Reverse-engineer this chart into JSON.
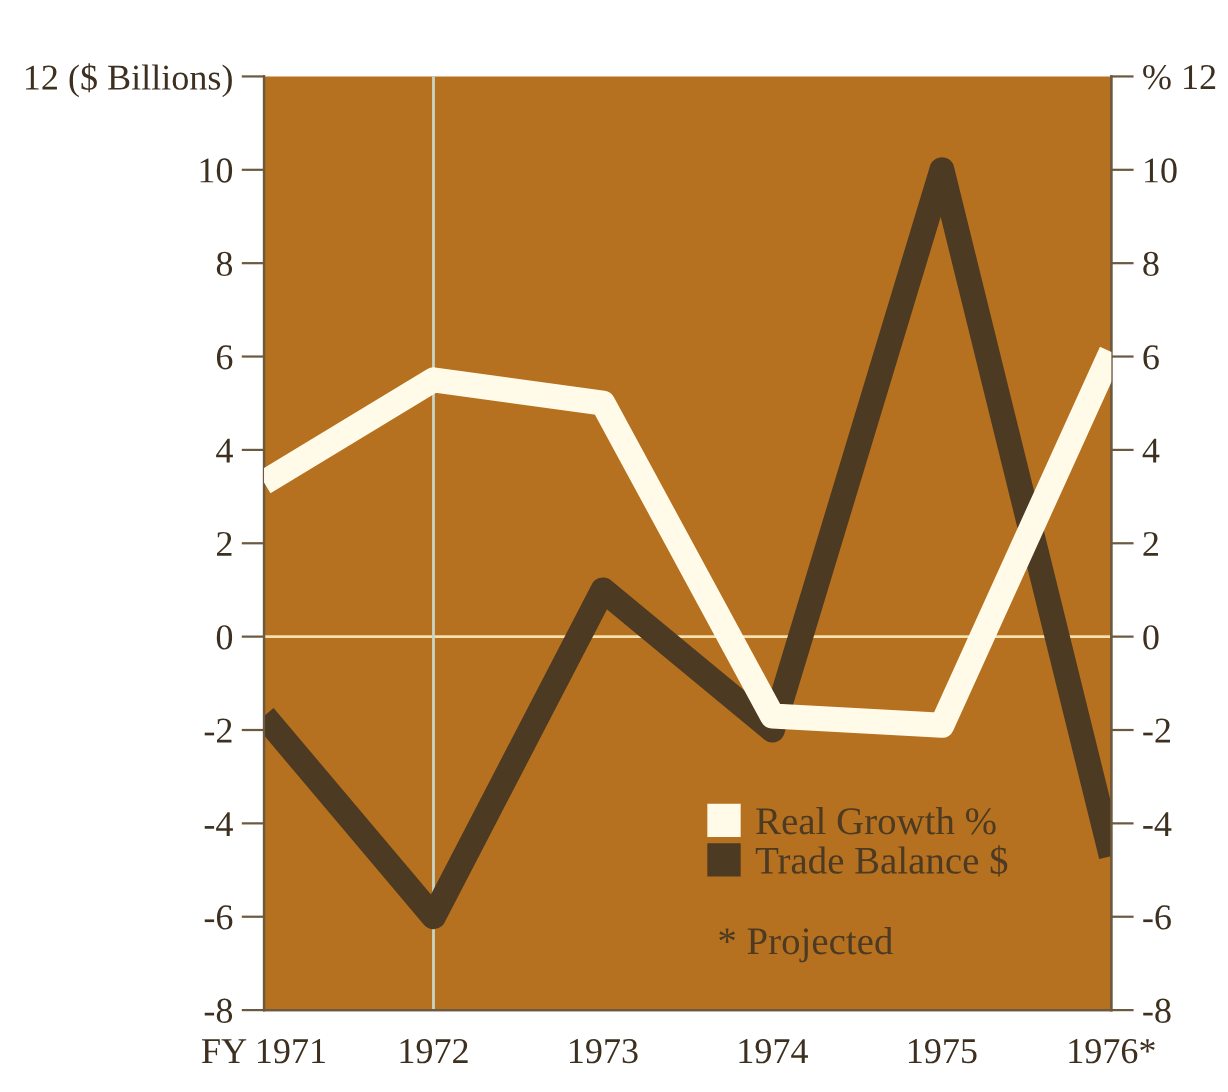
{
  "chart_data": {
    "type": "line",
    "x": [
      1971,
      1972,
      1973,
      1974,
      1975,
      1976
    ],
    "xlim": [
      1971,
      1976
    ],
    "xticks": [
      {
        "value": 1971,
        "label": "FY 1971"
      },
      1972,
      1973,
      1974,
      1975,
      {
        "value": 1976,
        "label": "1976*"
      }
    ],
    "ylim": [
      -8,
      12
    ],
    "yticks": [
      -8,
      -6,
      -4,
      -2,
      0,
      2,
      4,
      6,
      8,
      10,
      {
        "value": 12,
        "label": "12 ($ Billions)"
      }
    ],
    "y2lim": [
      -8,
      12
    ],
    "y2ticks": [
      -8,
      -6,
      -4,
      -2,
      0,
      2,
      4,
      6,
      8,
      10,
      {
        "value": 12,
        "label": "% 12"
      }
    ],
    "series": [
      {
        "name": "Real Growth %",
        "color": "#fffbe8",
        "axis": "y2",
        "values": [
          3.3,
          5.5,
          5.0,
          -1.7,
          -1.9,
          6.1
        ]
      },
      {
        "name": "Trade Balance $",
        "color": "#4d3a22",
        "values": [
          -1.7,
          -6.0,
          1.0,
          -2.0,
          10.0,
          -4.7
        ]
      }
    ],
    "ref_lines": [
      {
        "axis": "y",
        "value": 0,
        "color": "#f3e2b0"
      },
      {
        "axis": "x",
        "value": 1972,
        "color": "#c8d4c4"
      }
    ],
    "annotations": [
      "* Projected"
    ],
    "legend": "bottom right",
    "grid": false,
    "marker": "none",
    "line_style": "solid"
  }
}
